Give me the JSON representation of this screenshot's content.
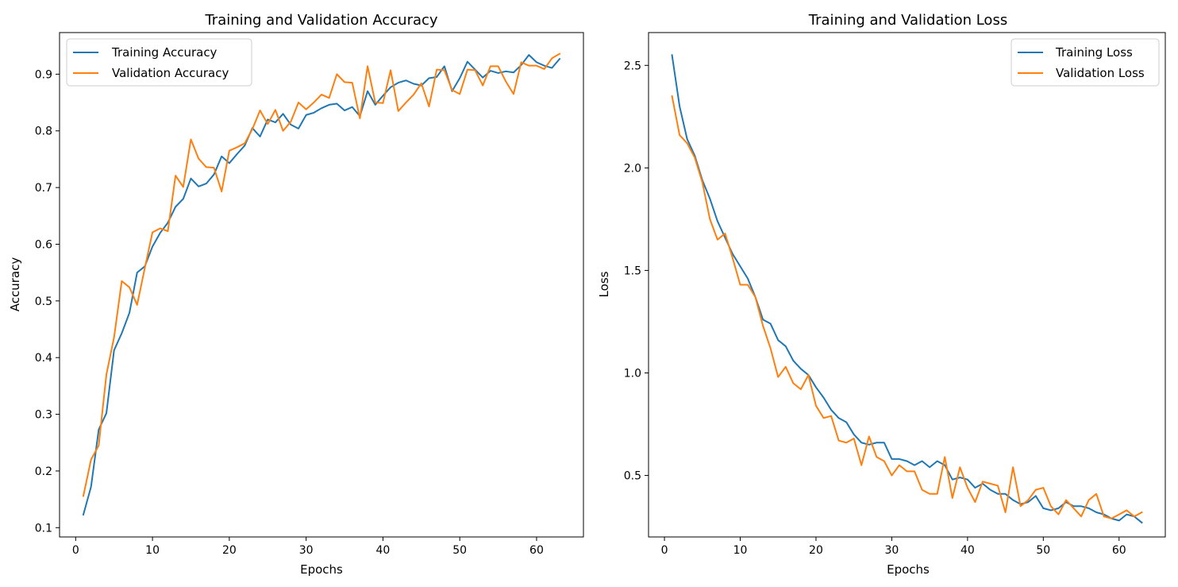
{
  "chart_data": [
    {
      "type": "line",
      "title": "Training and Validation Accuracy",
      "xlabel": "Epochs",
      "ylabel": "Accuracy",
      "xlim": [
        -2.1,
        66.1
      ],
      "ylim": [
        0.0836,
        0.9734
      ],
      "xticks": [
        0,
        10,
        20,
        30,
        40,
        50,
        60
      ],
      "yticks": [
        0.1,
        0.2,
        0.3,
        0.4,
        0.5,
        0.6,
        0.7,
        0.8,
        0.9
      ],
      "tick_labels_y": [
        "0.1",
        "0.2",
        "0.3",
        "0.4",
        "0.5",
        "0.6",
        "0.7",
        "0.8",
        "0.9"
      ],
      "grid": false,
      "legend_position": "upper-left",
      "x": [
        1,
        2,
        3,
        4,
        5,
        6,
        7,
        8,
        9,
        10,
        11,
        12,
        13,
        14,
        15,
        16,
        17,
        18,
        19,
        20,
        21,
        22,
        23,
        24,
        25,
        26,
        27,
        28,
        29,
        30,
        31,
        32,
        33,
        34,
        35,
        36,
        37,
        38,
        39,
        40,
        41,
        42,
        43,
        44,
        45,
        46,
        47,
        48,
        49,
        50,
        51,
        52,
        53,
        54,
        55,
        56,
        57,
        58,
        59,
        60,
        61,
        62,
        63
      ],
      "series": [
        {
          "name": "Training Accuracy",
          "color": "#1f77b4",
          "values": [
            0.123,
            0.172,
            0.273,
            0.302,
            0.413,
            0.443,
            0.479,
            0.55,
            0.561,
            0.596,
            0.62,
            0.638,
            0.666,
            0.68,
            0.716,
            0.702,
            0.707,
            0.723,
            0.755,
            0.743,
            0.759,
            0.774,
            0.805,
            0.79,
            0.82,
            0.815,
            0.83,
            0.811,
            0.804,
            0.828,
            0.832,
            0.84,
            0.846,
            0.848,
            0.836,
            0.842,
            0.826,
            0.87,
            0.846,
            0.862,
            0.877,
            0.885,
            0.889,
            0.883,
            0.88,
            0.893,
            0.895,
            0.914,
            0.87,
            0.893,
            0.922,
            0.908,
            0.894,
            0.906,
            0.902,
            0.905,
            0.903,
            0.916,
            0.934,
            0.921,
            0.915,
            0.911,
            0.927
          ]
        },
        {
          "name": "Validation Accuracy",
          "color": "#ff7f0e",
          "values": [
            0.156,
            0.22,
            0.245,
            0.37,
            0.436,
            0.535,
            0.524,
            0.493,
            0.558,
            0.621,
            0.628,
            0.623,
            0.721,
            0.701,
            0.785,
            0.751,
            0.736,
            0.735,
            0.693,
            0.765,
            0.771,
            0.778,
            0.803,
            0.836,
            0.812,
            0.837,
            0.8,
            0.816,
            0.85,
            0.838,
            0.85,
            0.864,
            0.858,
            0.9,
            0.886,
            0.885,
            0.822,
            0.914,
            0.85,
            0.849,
            0.907,
            0.835,
            0.85,
            0.864,
            0.884,
            0.843,
            0.908,
            0.907,
            0.872,
            0.865,
            0.908,
            0.907,
            0.88,
            0.914,
            0.914,
            0.887,
            0.865,
            0.921,
            0.915,
            0.915,
            0.909,
            0.928,
            0.936
          ]
        }
      ]
    },
    {
      "type": "line",
      "title": "Training and Validation Loss",
      "xlabel": "Epochs",
      "ylabel": "Loss",
      "xlim": [
        -2.1,
        66.1
      ],
      "ylim": [
        0.2,
        2.66
      ],
      "xticks": [
        0,
        10,
        20,
        30,
        40,
        50,
        60
      ],
      "yticks": [
        0.5,
        1.0,
        1.5,
        2.0,
        2.5
      ],
      "tick_labels_y": [
        "0.5",
        "1.0",
        "1.5",
        "2.0",
        "2.5"
      ],
      "grid": false,
      "legend_position": "upper-right",
      "x": [
        1,
        2,
        3,
        4,
        5,
        6,
        7,
        8,
        9,
        10,
        11,
        12,
        13,
        14,
        15,
        16,
        17,
        18,
        19,
        20,
        21,
        22,
        23,
        24,
        25,
        26,
        27,
        28,
        29,
        30,
        31,
        32,
        33,
        34,
        35,
        36,
        37,
        38,
        39,
        40,
        41,
        42,
        43,
        44,
        45,
        46,
        47,
        48,
        49,
        50,
        51,
        52,
        53,
        54,
        55,
        56,
        57,
        58,
        59,
        60,
        61,
        62,
        63
      ],
      "series": [
        {
          "name": "Training Loss",
          "color": "#1f77b4",
          "values": [
            2.55,
            2.3,
            2.14,
            2.06,
            1.94,
            1.85,
            1.74,
            1.66,
            1.58,
            1.52,
            1.46,
            1.37,
            1.26,
            1.24,
            1.16,
            1.13,
            1.06,
            1.02,
            0.99,
            0.93,
            0.88,
            0.82,
            0.78,
            0.76,
            0.7,
            0.66,
            0.65,
            0.66,
            0.66,
            0.58,
            0.58,
            0.57,
            0.55,
            0.57,
            0.54,
            0.57,
            0.55,
            0.48,
            0.49,
            0.48,
            0.44,
            0.46,
            0.43,
            0.41,
            0.41,
            0.38,
            0.36,
            0.37,
            0.4,
            0.34,
            0.33,
            0.34,
            0.37,
            0.35,
            0.35,
            0.34,
            0.32,
            0.31,
            0.29,
            0.28,
            0.31,
            0.3,
            0.27
          ]
        },
        {
          "name": "Validation Loss",
          "color": "#ff7f0e",
          "values": [
            2.35,
            2.16,
            2.12,
            2.05,
            1.93,
            1.75,
            1.65,
            1.68,
            1.56,
            1.43,
            1.43,
            1.37,
            1.23,
            1.12,
            0.98,
            1.03,
            0.95,
            0.92,
            0.99,
            0.84,
            0.78,
            0.79,
            0.67,
            0.66,
            0.68,
            0.55,
            0.69,
            0.59,
            0.57,
            0.5,
            0.55,
            0.52,
            0.52,
            0.43,
            0.41,
            0.41,
            0.59,
            0.39,
            0.54,
            0.44,
            0.37,
            0.47,
            0.46,
            0.45,
            0.32,
            0.54,
            0.35,
            0.38,
            0.43,
            0.44,
            0.35,
            0.31,
            0.38,
            0.34,
            0.3,
            0.38,
            0.41,
            0.3,
            0.29,
            0.31,
            0.33,
            0.3,
            0.32
          ]
        }
      ]
    }
  ]
}
